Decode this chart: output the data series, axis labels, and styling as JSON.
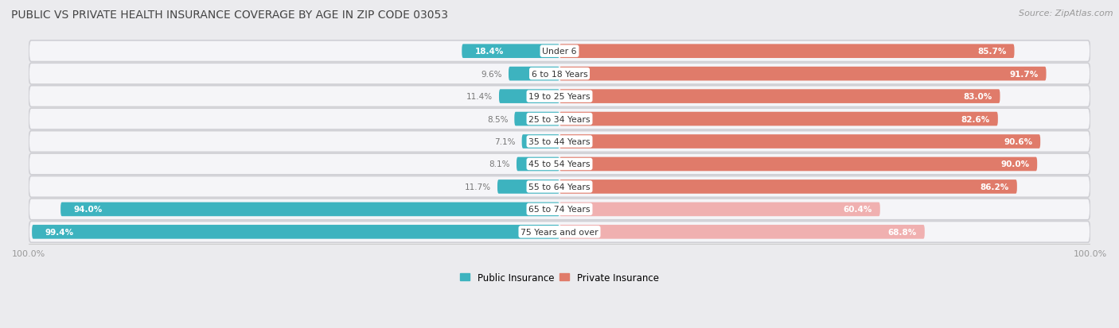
{
  "title": "Public vs Private Health Insurance Coverage by Age in Zip Code 03053",
  "source": "Source: ZipAtlas.com",
  "categories": [
    "Under 6",
    "6 to 18 Years",
    "19 to 25 Years",
    "25 to 34 Years",
    "35 to 44 Years",
    "45 to 54 Years",
    "55 to 64 Years",
    "65 to 74 Years",
    "75 Years and over"
  ],
  "public_values": [
    18.4,
    9.6,
    11.4,
    8.5,
    7.1,
    8.1,
    11.7,
    94.0,
    99.4
  ],
  "private_values": [
    85.7,
    91.7,
    83.0,
    82.6,
    90.6,
    90.0,
    86.2,
    60.4,
    68.8
  ],
  "public_color": "#3db3bf",
  "private_color_normal": "#e07b6a",
  "private_color_light": "#f0b0b0",
  "row_bg_color": "#e8e8ec",
  "row_bg_inner": "#f2f2f5",
  "fig_bg": "#ebebee",
  "title_color": "#444444",
  "source_color": "#999999",
  "value_label_inside_color": "#ffffff",
  "value_label_outside_color": "#777777",
  "category_label_color": "#333333",
  "axis_tick_color": "#999999",
  "legend_public_color": "#3db3bf",
  "legend_private_color": "#e07b6a",
  "fig_width": 14.06,
  "fig_height": 4.14,
  "bar_height": 0.62
}
